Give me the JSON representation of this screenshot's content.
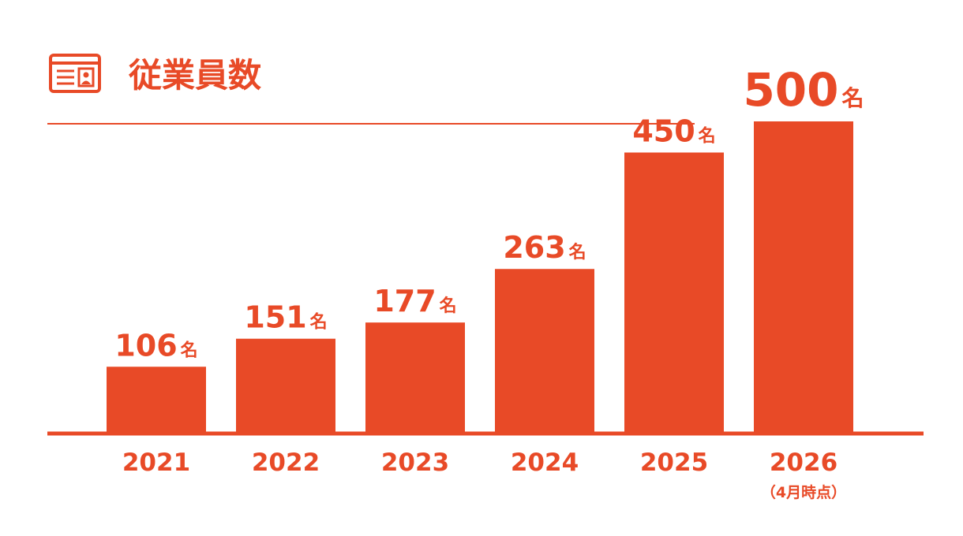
{
  "chart_data": {
    "type": "bar",
    "title": "従業員数",
    "categories": [
      "2021",
      "2022",
      "2023",
      "2024",
      "2025",
      "2026"
    ],
    "values": [
      106,
      151,
      177,
      263,
      450,
      500
    ],
    "unit": "名",
    "annotation": "（4月時点）",
    "color": "#e84a27",
    "ylim": [
      0,
      500
    ]
  }
}
